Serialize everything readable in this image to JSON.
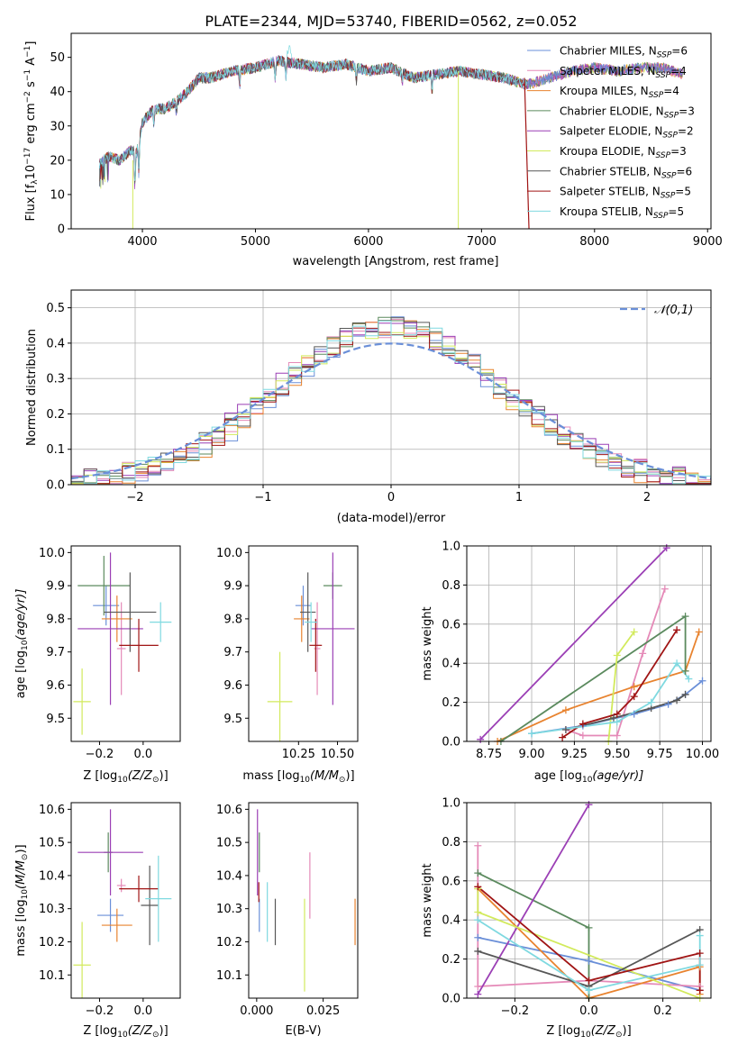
{
  "figure_title": "PLATE=2344, MJD=53740, FIBERID=0562, z=0.052",
  "colors": {
    "Chabrier MILES": "#6a8fd8",
    "Salpeter MILES": "#e58ab8",
    "Kroupa MILES": "#e8832f",
    "Chabrier ELODIE": "#5b8a5e",
    "Salpeter ELODIE": "#9b3fb5",
    "Kroupa ELODIE": "#d2ea5c",
    "Chabrier STELIB": "#575757",
    "Salpeter STELIB": "#a01414",
    "Kroupa STELIB": "#7fd9e0",
    "normal": "#6a8fd8"
  },
  "chart_data": [
    {
      "id": "spectrum",
      "type": "line",
      "title": "PLATE=2344, MJD=53740, FIBERID=0562, z=0.052",
      "xlabel": "wavelength [Angstrom, rest frame]",
      "ylabel_main": "Flux [f",
      "ylabel_sub": "λ",
      "ylabel_rest": "10",
      "ylabel_exp": "−17",
      "ylabel_unit": " erg cm",
      "ylabel_exp2": "−2",
      "ylabel_unit2": " s",
      "ylabel_exp3": "−1",
      "ylabel_unit3": " A",
      "ylabel_exp4": "−1",
      "ylabel_end": "]",
      "xlim": [
        3370,
        9030
      ],
      "ylim": [
        0,
        57
      ],
      "xticks": [
        4000,
        5000,
        6000,
        7000,
        8000,
        9000
      ],
      "yticks": [
        0,
        10,
        20,
        30,
        40,
        50
      ],
      "grid": false,
      "legend_position": "top-right",
      "continuum_x": [
        3620,
        3700,
        3800,
        3900,
        3950,
        4000,
        4100,
        4200,
        4300,
        4400,
        4500,
        4600,
        4800,
        5000,
        5200,
        5400,
        5600,
        5800,
        6000,
        6200,
        6400,
        6600,
        6800,
        7000,
        7200,
        7400,
        7600,
        7800,
        8000,
        8200,
        8400,
        8600,
        8780
      ],
      "continuum_y": [
        19,
        21,
        20,
        23,
        22,
        31,
        35,
        35,
        37,
        40,
        44,
        44,
        46,
        47,
        49,
        48,
        47,
        48,
        46,
        47,
        44,
        45,
        46,
        45,
        44,
        42,
        44,
        46,
        47,
        46,
        47,
        47,
        45
      ],
      "series": [
        {
          "name": "Chabrier MILES",
          "nssp": "6"
        },
        {
          "name": "Salpeter MILES",
          "nssp": "4"
        },
        {
          "name": "Kroupa MILES",
          "nssp": "4"
        },
        {
          "name": "Chabrier ELODIE",
          "nssp": "3"
        },
        {
          "name": "Salpeter ELODIE",
          "nssp": "2"
        },
        {
          "name": "Kroupa ELODIE",
          "nssp": "3"
        },
        {
          "name": "Chabrier STELIB",
          "nssp": "6"
        },
        {
          "name": "Salpeter STELIB",
          "nssp": "5"
        },
        {
          "name": "Kroupa STELIB",
          "nssp": "5"
        }
      ],
      "legend_prefix": ", N",
      "legend_sub": "SSP",
      "legend_eq": "="
    },
    {
      "id": "residuals",
      "type": "histogram",
      "xlabel": "(data-model)/error",
      "ylabel": "Normed distribution",
      "xlim": [
        -2.5,
        2.5
      ],
      "ylim": [
        0,
        0.55
      ],
      "xticks": [
        -2,
        -1,
        0,
        1,
        2
      ],
      "yticks": [
        0,
        0.1,
        0.2,
        0.3,
        0.4,
        0.5
      ],
      "grid": true,
      "bin_width": 0.1,
      "legend_label": "𝒩(0,1)",
      "legend_position": "top-right"
    },
    {
      "id": "age_vs_Z",
      "type": "errorbar",
      "xlabel_pre": "Z [log",
      "xlabel_sub": "10",
      "xlabel_post": "(Z/Z",
      "xlabel_sun": "⊙",
      "xlabel_end": ")]",
      "ylabel_pre": "age  [log",
      "ylabel_sub": "10",
      "ylabel_post": "(age/yr)]",
      "xlim": [
        -0.33,
        0.17
      ],
      "ylim": [
        9.43,
        10.02
      ],
      "xticks": [
        -0.2,
        0.0
      ],
      "yticks": [
        9.5,
        9.6,
        9.7,
        9.8,
        9.9,
        10.0
      ],
      "points": [
        {
          "model": "Chabrier MILES",
          "x": -0.17,
          "xerr": 0.06,
          "y": 9.84,
          "yerr": 0.06
        },
        {
          "model": "Salpeter MILES",
          "x": -0.1,
          "xerr": 0.02,
          "y": 9.71,
          "yerr": 0.14
        },
        {
          "model": "Kroupa MILES",
          "x": -0.12,
          "xerr": 0.07,
          "y": 9.8,
          "yerr": 0.07
        },
        {
          "model": "Chabrier ELODIE",
          "x": -0.18,
          "xerr": 0.12,
          "y": 9.9,
          "yerr": 0.09
        },
        {
          "model": "Salpeter ELODIE",
          "x": -0.15,
          "xerr": 0.15,
          "y": 9.77,
          "yerr": 0.23
        },
        {
          "model": "Kroupa ELODIE",
          "x": -0.28,
          "xerr": 0.04,
          "y": 9.55,
          "yerr": 0.1
        },
        {
          "model": "Chabrier STELIB",
          "x": -0.06,
          "xerr": 0.12,
          "y": 9.82,
          "yerr": 0.12
        },
        {
          "model": "Salpeter STELIB",
          "x": -0.02,
          "xerr": 0.09,
          "y": 9.72,
          "yerr": 0.08
        },
        {
          "model": "Kroupa STELIB",
          "x": 0.08,
          "xerr": 0.05,
          "y": 9.79,
          "yerr": 0.06
        }
      ]
    },
    {
      "id": "age_vs_mass",
      "type": "errorbar",
      "xlabel_pre": "mass [log",
      "xlabel_sub": "10",
      "xlabel_post": "(M/M",
      "xlabel_sun": "⊙",
      "xlabel_end": ")]",
      "xlim": [
        9.93,
        10.63
      ],
      "ylim": [
        9.43,
        10.02
      ],
      "xticks": [
        10.25,
        10.5
      ],
      "yticks": [
        9.5,
        9.6,
        9.7,
        9.8,
        9.9,
        10.0
      ],
      "points": [
        {
          "model": "Chabrier MILES",
          "x": 10.28,
          "xerr": 0.05,
          "y": 9.84,
          "yerr": 0.06
        },
        {
          "model": "Salpeter MILES",
          "x": 10.37,
          "xerr": 0.02,
          "y": 9.71,
          "yerr": 0.14
        },
        {
          "model": "Kroupa MILES",
          "x": 10.27,
          "xerr": 0.05,
          "y": 9.8,
          "yerr": 0.07
        },
        {
          "model": "Chabrier ELODIE",
          "x": 10.47,
          "xerr": 0.06,
          "y": 9.9,
          "yerr": 0.04
        },
        {
          "model": "Salpeter ELODIE",
          "x": 10.47,
          "xerr": 0.14,
          "y": 9.77,
          "yerr": 0.23
        },
        {
          "model": "Kroupa ELODIE",
          "x": 10.13,
          "xerr": 0.08,
          "y": 9.55,
          "yerr": 0.15
        },
        {
          "model": "Chabrier STELIB",
          "x": 10.31,
          "xerr": 0.05,
          "y": 9.82,
          "yerr": 0.12
        },
        {
          "model": "Salpeter STELIB",
          "x": 10.36,
          "xerr": 0.04,
          "y": 9.72,
          "yerr": 0.08
        },
        {
          "model": "Kroupa STELIB",
          "x": 10.33,
          "xerr": 0.04,
          "y": 9.79,
          "yerr": 0.06
        }
      ]
    },
    {
      "id": "weight_vs_age",
      "type": "line",
      "xlabel_pre": "age  [log",
      "xlabel_sub": "10",
      "xlabel_post": "(age/yr)]",
      "ylabel": "mass weight",
      "xlim": [
        8.62,
        10.05
      ],
      "ylim": [
        0,
        1
      ],
      "xticks": [
        8.75,
        9.0,
        9.25,
        9.5,
        9.75,
        10.0
      ],
      "yticks": [
        0.0,
        0.2,
        0.4,
        0.6,
        0.8,
        1.0
      ],
      "grid": true,
      "series": [
        {
          "model": "Chabrier MILES",
          "x": [
            9.0,
            9.3,
            9.6,
            9.8,
            9.9,
            10.0
          ],
          "y": [
            0.04,
            0.08,
            0.14,
            0.19,
            0.24,
            0.31
          ]
        },
        {
          "model": "Salpeter MILES",
          "x": [
            9.2,
            9.3,
            9.5,
            9.65,
            9.78
          ],
          "y": [
            0.06,
            0.03,
            0.03,
            0.45,
            0.78
          ]
        },
        {
          "model": "Kroupa MILES",
          "x": [
            8.8,
            9.2,
            9.6,
            9.9,
            9.98
          ],
          "y": [
            0.0,
            0.16,
            0.28,
            0.36,
            0.56
          ]
        },
        {
          "model": "Chabrier ELODIE",
          "x": [
            8.82,
            9.9,
            9.9
          ],
          "y": [
            0.0,
            0.64,
            0.36
          ]
        },
        {
          "model": "Salpeter ELODIE",
          "x": [
            8.7,
            9.79
          ],
          "y": [
            0.01,
            0.99
          ]
        },
        {
          "model": "Kroupa ELODIE",
          "x": [
            9.45,
            9.5,
            9.6
          ],
          "y": [
            0.0,
            0.44,
            0.56
          ]
        },
        {
          "model": "Chabrier STELIB",
          "x": [
            9.2,
            9.48,
            9.7,
            9.85,
            9.9
          ],
          "y": [
            0.06,
            0.12,
            0.17,
            0.21,
            0.24
          ]
        },
        {
          "model": "Salpeter STELIB",
          "x": [
            9.18,
            9.3,
            9.5,
            9.6,
            9.85
          ],
          "y": [
            0.02,
            0.09,
            0.14,
            0.23,
            0.57
          ]
        },
        {
          "model": "Kroupa STELIB",
          "x": [
            9.0,
            9.5,
            9.7,
            9.85,
            9.92
          ],
          "y": [
            0.04,
            0.1,
            0.2,
            0.4,
            0.32
          ]
        }
      ]
    },
    {
      "id": "mass_vs_Z",
      "type": "errorbar",
      "xlabel_pre": "Z [log",
      "xlabel_sub": "10",
      "xlabel_post": "(Z/Z",
      "xlabel_sun": "⊙",
      "xlabel_end": ")]",
      "ylabel_pre": "mass [log",
      "ylabel_sub": "10",
      "ylabel_post": "(M/M",
      "ylabel_sun": "⊙",
      "ylabel_end": ")]",
      "xlim": [
        -0.33,
        0.17
      ],
      "ylim": [
        10.03,
        10.62
      ],
      "xticks": [
        -0.2,
        0.0
      ],
      "yticks": [
        10.1,
        10.2,
        10.3,
        10.4,
        10.5,
        10.6
      ],
      "points": [
        {
          "model": "Chabrier MILES",
          "x": -0.15,
          "xerr": 0.06,
          "y": 10.28,
          "yerr": 0.05
        },
        {
          "model": "Salpeter MILES",
          "x": -0.1,
          "xerr": 0.02,
          "y": 10.37,
          "yerr": 0.02
        },
        {
          "model": "Kroupa MILES",
          "x": -0.12,
          "xerr": 0.07,
          "y": 10.25,
          "yerr": 0.05
        },
        {
          "model": "Chabrier ELODIE",
          "x": -0.16,
          "xerr": 0.02,
          "y": 10.47,
          "yerr": 0.06
        },
        {
          "model": "Salpeter ELODIE",
          "x": -0.15,
          "xerr": 0.15,
          "y": 10.47,
          "yerr": 0.13
        },
        {
          "model": "Kroupa ELODIE",
          "x": -0.28,
          "xerr": 0.04,
          "y": 10.13,
          "yerr": 0.13
        },
        {
          "model": "Chabrier STELIB",
          "x": 0.03,
          "xerr": 0.04,
          "y": 10.31,
          "yerr": 0.12
        },
        {
          "model": "Salpeter STELIB",
          "x": -0.02,
          "xerr": 0.09,
          "y": 10.36,
          "yerr": 0.04
        },
        {
          "model": "Kroupa STELIB",
          "x": 0.07,
          "xerr": 0.06,
          "y": 10.33,
          "yerr": 0.13
        }
      ]
    },
    {
      "id": "mass_vs_ebv",
      "type": "errorbar",
      "xlabel": "E(B-V)",
      "xlim": [
        -0.003,
        0.038
      ],
      "ylim": [
        10.03,
        10.62
      ],
      "xticks": [
        0.0,
        0.025
      ],
      "xtick_labels": [
        "0.000",
        "0.025"
      ],
      "yticks": [
        10.1,
        10.2,
        10.3,
        10.4,
        10.5,
        10.6
      ],
      "points": [
        {
          "model": "Chabrier MILES",
          "x": 0.001,
          "xerr": 0,
          "y": 10.28,
          "yerr": 0.05
        },
        {
          "model": "Salpeter MILES",
          "x": 0.02,
          "xerr": 0,
          "y": 10.37,
          "yerr": 0.1
        },
        {
          "model": "Kroupa MILES",
          "x": 0.037,
          "xerr": 0,
          "y": 10.26,
          "yerr": 0.07
        },
        {
          "model": "Chabrier ELODIE",
          "x": 0.001,
          "xerr": 0,
          "y": 10.47,
          "yerr": 0.06
        },
        {
          "model": "Salpeter ELODIE",
          "x": 0.0003,
          "xerr": 0,
          "y": 10.47,
          "yerr": 0.13
        },
        {
          "model": "Kroupa ELODIE",
          "x": 0.018,
          "xerr": 0,
          "y": 10.19,
          "yerr": 0.14
        },
        {
          "model": "Chabrier STELIB",
          "x": 0.007,
          "xerr": 0,
          "y": 10.26,
          "yerr": 0.07
        },
        {
          "model": "Salpeter STELIB",
          "x": 0.0008,
          "xerr": 0,
          "y": 10.35,
          "yerr": 0.03
        },
        {
          "model": "Kroupa STELIB",
          "x": 0.004,
          "xerr": 0,
          "y": 10.29,
          "yerr": 0.09
        }
      ]
    },
    {
      "id": "weight_vs_Z",
      "type": "line",
      "xlabel_pre": "Z [log",
      "xlabel_sub": "10",
      "xlabel_post": "(Z/Z",
      "xlabel_sun": "⊙",
      "xlabel_end": ")]",
      "ylabel": "mass weight",
      "xlim": [
        -0.33,
        0.33
      ],
      "ylim": [
        0,
        1
      ],
      "xticks": [
        -0.2,
        0.0,
        0.2
      ],
      "yticks": [
        0.0,
        0.2,
        0.4,
        0.6,
        0.8,
        1.0
      ],
      "grid": true,
      "series": [
        {
          "model": "Chabrier MILES",
          "x": [
            -0.3,
            0.0,
            0.3
          ],
          "y": [
            0.31,
            0.19,
            0.04
          ]
        },
        {
          "model": "Salpeter MILES",
          "x": [
            -0.3,
            -0.3,
            0.0,
            0.3
          ],
          "y": [
            0.78,
            0.06,
            0.09,
            0.06
          ]
        },
        {
          "model": "Kroupa MILES",
          "x": [
            -0.3,
            0.0,
            0.3,
            0.3
          ],
          "y": [
            0.56,
            0.0,
            0.16,
            0.02
          ]
        },
        {
          "model": "Chabrier ELODIE",
          "x": [
            -0.3,
            0.0,
            0.0
          ],
          "y": [
            0.64,
            0.36,
            0.0
          ]
        },
        {
          "model": "Salpeter ELODIE",
          "x": [
            -0.3,
            0.0
          ],
          "y": [
            0.02,
            0.99
          ]
        },
        {
          "model": "Kroupa ELODIE",
          "x": [
            -0.3,
            -0.3,
            0.3
          ],
          "y": [
            0.56,
            0.44,
            0.0
          ]
        },
        {
          "model": "Chabrier STELIB",
          "x": [
            -0.3,
            0.0,
            0.3
          ],
          "y": [
            0.24,
            0.06,
            0.35
          ]
        },
        {
          "model": "Salpeter STELIB",
          "x": [
            -0.3,
            0.0,
            0.3,
            0.3
          ],
          "y": [
            0.57,
            0.09,
            0.23,
            0.04
          ]
        },
        {
          "model": "Kroupa STELIB",
          "x": [
            -0.3,
            0.0,
            0.3,
            0.3
          ],
          "y": [
            0.4,
            0.04,
            0.17,
            0.32
          ]
        }
      ]
    }
  ]
}
